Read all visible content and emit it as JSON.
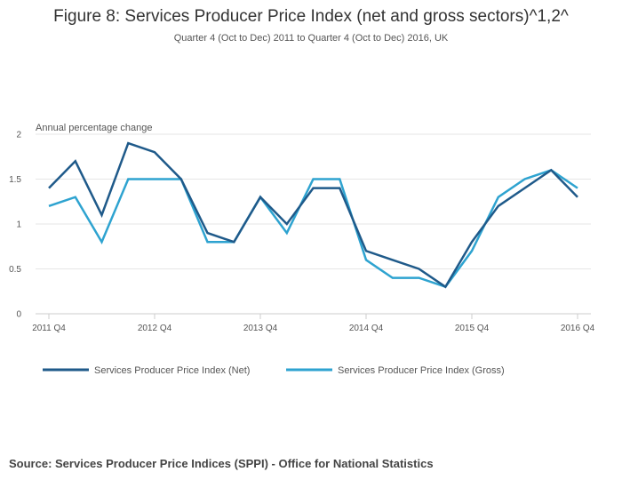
{
  "chart_data": {
    "type": "line",
    "title": "Figure 8: Services Producer Price Index (net and gross sectors)^1,2^",
    "subtitle": "Quarter 4 (Oct to Dec) 2011 to Quarter 4 (Oct to Dec) 2016, UK",
    "ylabel": "Annual percentage change",
    "xlabel": "",
    "ylim": [
      0,
      2
    ],
    "yticks": [
      "0",
      "0.5",
      "1",
      "1.5",
      "2"
    ],
    "ytick_values": [
      0,
      0.5,
      1,
      1.5,
      2
    ],
    "x": [
      "2011 Q4",
      "2012 Q1",
      "2012 Q2",
      "2012 Q3",
      "2012 Q4",
      "2013 Q1",
      "2013 Q2",
      "2013 Q3",
      "2013 Q4",
      "2014 Q1",
      "2014 Q2",
      "2014 Q3",
      "2014 Q4",
      "2015 Q1",
      "2015 Q2",
      "2015 Q3",
      "2015 Q4",
      "2016 Q1",
      "2016 Q2",
      "2016 Q3",
      "2016 Q4"
    ],
    "xtick_labels": [
      "2011 Q4",
      "2012 Q4",
      "2013 Q4",
      "2014 Q4",
      "2015 Q4",
      "2016 Q4"
    ],
    "xtick_indices": [
      0,
      4,
      8,
      12,
      16,
      20
    ],
    "grid": true,
    "legend_position": "bottom-left",
    "series": [
      {
        "name": "Services Producer Price Index (Net)",
        "color": "#1f5a8a",
        "values": [
          1.4,
          1.7,
          1.1,
          1.9,
          1.8,
          1.5,
          0.9,
          0.8,
          1.3,
          1.0,
          1.4,
          1.4,
          0.7,
          0.6,
          0.5,
          0.3,
          0.8,
          1.2,
          1.4,
          1.6,
          1.3
        ]
      },
      {
        "name": "Services Producer Price Index (Gross)",
        "color": "#2ea3d0",
        "values": [
          1.2,
          1.3,
          0.8,
          1.5,
          1.5,
          1.5,
          0.8,
          0.8,
          1.3,
          0.9,
          1.5,
          1.5,
          0.6,
          0.4,
          0.4,
          0.3,
          0.7,
          1.3,
          1.5,
          1.6,
          1.4
        ]
      }
    ]
  },
  "source": "Source: Services Producer Price Indices (SPPI) - Office for National Statistics"
}
